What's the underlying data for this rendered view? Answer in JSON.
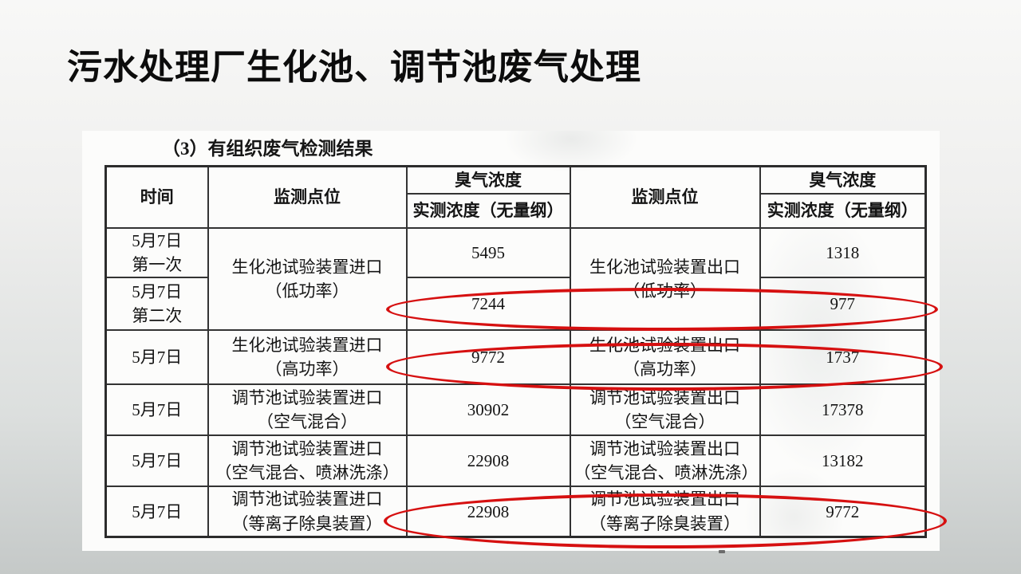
{
  "colors": {
    "annotation_red": "#d61010",
    "table_border": "#333333",
    "background_top": "#f8f8f7",
    "background_bottom": "#c5c9c8"
  },
  "slide": {
    "title": "污水处理厂生化池、调节池废气处理"
  },
  "scan": {
    "caption": "（3）有组织废气检测结果",
    "table": {
      "header": {
        "time": "时间",
        "monitor_point": "监测点位",
        "odor_concentration": "臭气浓度",
        "measured": "实测浓度（无量纲）"
      },
      "rows": [
        {
          "time1": "5月7日",
          "time2": "第一次",
          "in_name": "生化池试验装置进口",
          "in_mode": "（低功率）",
          "in_value": "5495",
          "out_name": "生化池试验装置出口",
          "out_mode": "（低功率）",
          "out_value": "1318"
        },
        {
          "time1": "5月7日",
          "time2": "第二次",
          "in_value": "7244",
          "out_value": "977"
        },
        {
          "time1": "5月7日",
          "in_name": "生化池试验装置进口",
          "in_mode": "（高功率）",
          "in_value": "9772",
          "out_name": "生化池试验装置出口",
          "out_mode": "（高功率）",
          "out_value": "1737"
        },
        {
          "time1": "5月7日",
          "in_name": "调节池试验装置进口",
          "in_mode": "（空气混合）",
          "in_value": "30902",
          "out_name": "调节池试验装置出口",
          "out_mode": "（空气混合）",
          "out_value": "17378"
        },
        {
          "time1": "5月7日",
          "in_name": "调节池试验装置进口",
          "in_mode": "（空气混合、喷淋洗涤）",
          "in_value": "22908",
          "out_name": "调节池试验装置出口",
          "out_mode": "（空气混合、喷淋洗涤）",
          "out_value": "13182"
        },
        {
          "time1": "5月7日",
          "in_name": "调节池试验装置进口",
          "in_mode": "（等离子除臭装置）",
          "in_value": "22908",
          "out_name": "调节池试验装置出口",
          "out_mode": "（等离子除臭装置）",
          "out_value": "9772"
        }
      ],
      "annotations": {
        "circled_row_values": [
          [
            "7244",
            "977"
          ],
          [
            "9772",
            "1737"
          ],
          [
            "22908",
            "9772"
          ]
        ]
      }
    }
  }
}
